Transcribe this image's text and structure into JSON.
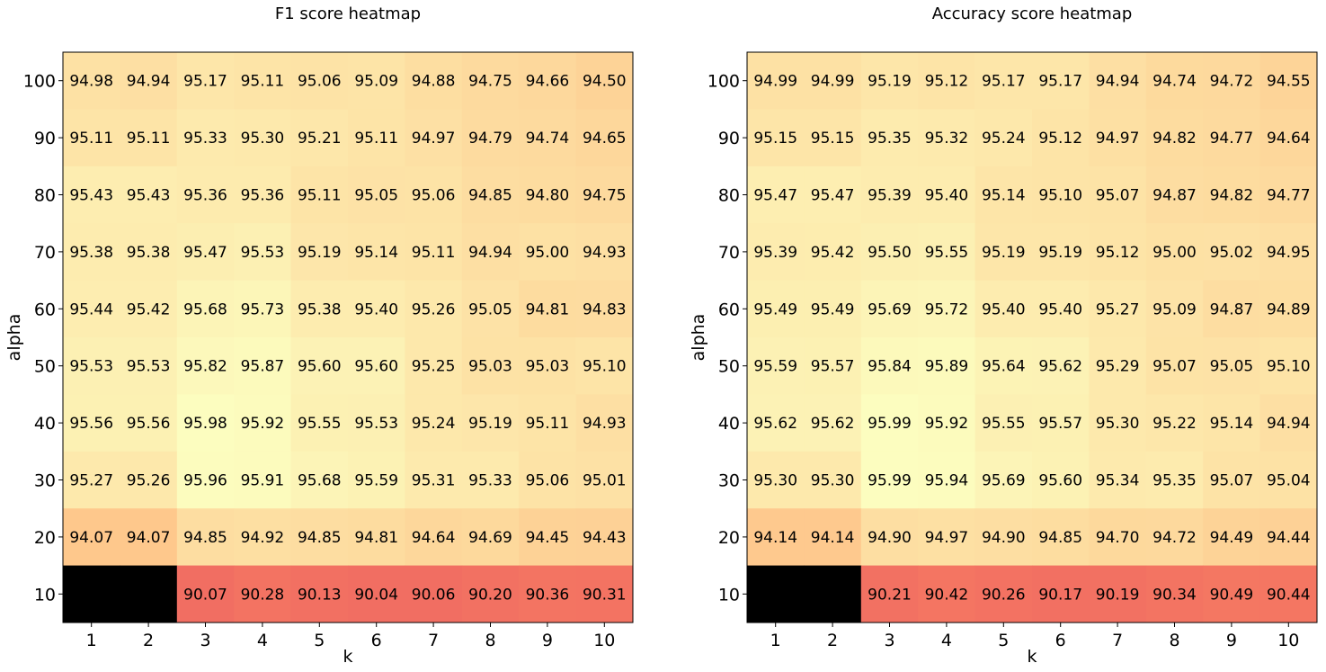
{
  "chart_data": [
    {
      "type": "heatmap",
      "title": "F1 score heatmap",
      "xlabel": "k",
      "ylabel": "alpha",
      "x": [
        1,
        2,
        3,
        4,
        5,
        6,
        7,
        8,
        9,
        10
      ],
      "y": [
        100,
        90,
        80,
        70,
        60,
        50,
        40,
        30,
        20,
        10
      ],
      "colormap": "magma",
      "value_range": [
        0,
        95.98
      ],
      "values": [
        [
          94.98,
          94.94,
          95.17,
          95.11,
          95.06,
          95.09,
          94.88,
          94.75,
          94.66,
          94.5
        ],
        [
          95.11,
          95.11,
          95.33,
          95.3,
          95.21,
          95.11,
          94.97,
          94.79,
          94.74,
          94.65
        ],
        [
          95.43,
          95.43,
          95.36,
          95.36,
          95.11,
          95.05,
          95.06,
          94.85,
          94.8,
          94.75
        ],
        [
          95.38,
          95.38,
          95.47,
          95.53,
          95.19,
          95.14,
          95.11,
          94.94,
          95.0,
          94.93
        ],
        [
          95.44,
          95.42,
          95.68,
          95.73,
          95.38,
          95.4,
          95.26,
          95.05,
          94.81,
          94.83
        ],
        [
          95.53,
          95.53,
          95.82,
          95.87,
          95.6,
          95.6,
          95.25,
          95.03,
          95.03,
          95.1
        ],
        [
          95.56,
          95.56,
          95.98,
          95.92,
          95.55,
          95.53,
          95.24,
          95.19,
          95.11,
          94.93
        ],
        [
          95.27,
          95.26,
          95.96,
          95.91,
          95.68,
          95.59,
          95.31,
          95.33,
          95.06,
          95.01
        ],
        [
          94.07,
          94.07,
          94.85,
          94.92,
          94.85,
          94.81,
          94.64,
          94.69,
          94.45,
          94.43
        ],
        [
          null,
          null,
          90.07,
          90.28,
          90.13,
          90.04,
          90.06,
          90.2,
          90.36,
          90.31
        ]
      ]
    },
    {
      "type": "heatmap",
      "title": "Accuracy score heatmap",
      "xlabel": "k",
      "ylabel": "alpha",
      "x": [
        1,
        2,
        3,
        4,
        5,
        6,
        7,
        8,
        9,
        10
      ],
      "y": [
        100,
        90,
        80,
        70,
        60,
        50,
        40,
        30,
        20,
        10
      ],
      "colormap": "magma",
      "value_range": [
        0,
        95.99
      ],
      "values": [
        [
          94.99,
          94.99,
          95.19,
          95.12,
          95.17,
          95.17,
          94.94,
          94.74,
          94.72,
          94.55
        ],
        [
          95.15,
          95.15,
          95.35,
          95.32,
          95.24,
          95.12,
          94.97,
          94.82,
          94.77,
          94.64
        ],
        [
          95.47,
          95.47,
          95.39,
          95.4,
          95.14,
          95.1,
          95.07,
          94.87,
          94.82,
          94.77
        ],
        [
          95.39,
          95.42,
          95.5,
          95.55,
          95.19,
          95.19,
          95.12,
          95.0,
          95.02,
          94.95
        ],
        [
          95.49,
          95.49,
          95.69,
          95.72,
          95.4,
          95.4,
          95.27,
          95.09,
          94.87,
          94.89
        ],
        [
          95.59,
          95.57,
          95.84,
          95.89,
          95.64,
          95.62,
          95.29,
          95.07,
          95.05,
          95.1
        ],
        [
          95.62,
          95.62,
          95.99,
          95.92,
          95.55,
          95.57,
          95.3,
          95.22,
          95.14,
          94.94
        ],
        [
          95.3,
          95.3,
          95.99,
          95.94,
          95.69,
          95.6,
          95.34,
          95.35,
          95.07,
          95.04
        ],
        [
          94.14,
          94.14,
          94.9,
          94.97,
          94.9,
          94.85,
          94.7,
          94.72,
          94.49,
          94.44
        ],
        [
          null,
          null,
          90.21,
          90.42,
          90.26,
          90.17,
          90.19,
          90.34,
          90.49,
          90.44
        ]
      ]
    }
  ]
}
